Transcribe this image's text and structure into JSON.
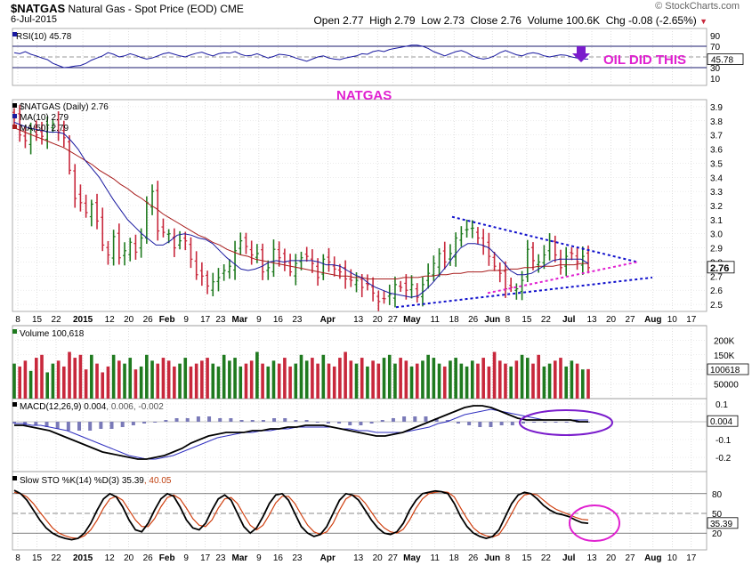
{
  "header": {
    "symbol": "$NATGAS",
    "name": "Natural Gas - Spot Price (EOD)",
    "exchange": "CME",
    "date": "6-Jul-2015",
    "brand": "© StockCharts.com",
    "quote": "Open 2.77  High 2.79  Low 2.73  Close 2.76  Volume 100.6K  Chg -0.08 (-2.65%)",
    "quote_arrow": "▼"
  },
  "annotations": {
    "oil": "OIL DID THIS",
    "natgas": "NATGAS"
  },
  "colors": {
    "up": "#1f7a1f",
    "down": "#c8283c",
    "ma10": "#1a1aa0",
    "ma50": "#a81c1c",
    "pink": "#e020d0",
    "purple": "#7a1ccc",
    "blue_trend": "#1010cc",
    "hist": "#7a7ab8"
  },
  "chart_data": [
    {
      "type": "line",
      "panel": "rsi",
      "legend": "RSI(10) 45.78",
      "last": "45.78",
      "yticks": [
        "90",
        "70",
        "50",
        "30",
        "10"
      ],
      "ylim": [
        0,
        100
      ],
      "values": [
        58,
        56,
        60,
        55,
        52,
        48,
        45,
        38,
        34,
        30,
        31,
        33,
        34,
        38,
        44,
        48,
        52,
        58,
        55,
        50,
        52,
        56,
        53,
        49,
        46,
        48,
        52,
        56,
        58,
        55,
        52,
        50,
        54,
        57,
        59,
        55,
        52,
        56,
        58,
        57,
        60,
        55,
        52,
        53,
        56,
        52,
        48,
        51,
        55,
        54,
        52,
        48,
        45,
        42,
        46,
        50,
        52,
        48,
        46,
        45,
        48,
        50,
        52,
        56,
        55,
        60,
        62,
        60,
        64,
        66,
        68,
        70,
        72,
        72,
        70,
        66,
        60,
        56,
        52,
        56,
        60,
        62,
        58,
        52,
        48,
        46,
        48,
        52,
        58,
        62,
        58,
        54,
        52,
        56,
        58,
        56,
        52,
        50,
        52,
        54,
        53,
        50,
        48,
        46,
        46
      ]
    },
    {
      "type": "ohlc",
      "panel": "price",
      "legend": [
        "$NATGAS (Daily) 2.76",
        "MA(10) 2.79",
        "MA(50) 2.79"
      ],
      "last": "2.76",
      "ylim": [
        2.45,
        3.95
      ],
      "yticks": [
        "3.9",
        "3.8",
        "3.7",
        "3.6",
        "3.5",
        "3.4",
        "3.3",
        "3.2",
        "3.1",
        "3.0",
        "2.9",
        "2.8",
        "2.7",
        "2.6",
        "2.5"
      ],
      "close": [
        3.82,
        3.7,
        3.66,
        3.74,
        3.7,
        3.69,
        3.77,
        3.78,
        3.72,
        3.68,
        3.45,
        3.25,
        3.22,
        3.15,
        3.21,
        3.09,
        2.92,
        2.85,
        2.98,
        2.83,
        2.88,
        2.94,
        2.87,
        2.97,
        3.22,
        3.3,
        3.02,
        3.01,
        3.0,
        2.9,
        2.95,
        2.95,
        2.82,
        2.71,
        2.7,
        2.63,
        2.66,
        2.69,
        2.74,
        2.77,
        2.88,
        2.95,
        2.91,
        2.85,
        2.86,
        2.73,
        2.76,
        2.89,
        2.83,
        2.8,
        2.73,
        2.79,
        2.83,
        2.84,
        2.79,
        2.69,
        2.82,
        2.8,
        2.75,
        2.73,
        2.68,
        2.67,
        2.67,
        2.62,
        2.64,
        2.58,
        2.52,
        2.54,
        2.57,
        2.64,
        2.62,
        2.6,
        2.64,
        2.55,
        2.64,
        2.72,
        2.79,
        2.86,
        2.8,
        2.86,
        2.97,
        3.0,
        3.03,
        3.04,
        2.97,
        2.91,
        2.84,
        2.77,
        2.72,
        2.61,
        2.62,
        2.61,
        2.67,
        2.89,
        2.81,
        2.8,
        2.85,
        2.95,
        2.85,
        2.76,
        2.84,
        2.86,
        2.8,
        2.84,
        2.76
      ],
      "ma10": [
        3.79,
        3.77,
        3.75,
        3.74,
        3.73,
        3.72,
        3.72,
        3.71,
        3.66,
        3.6,
        3.52,
        3.46,
        3.4,
        3.32,
        3.24,
        3.17,
        3.1,
        3.05,
        3.0,
        2.96,
        2.92,
        2.92,
        2.95,
        2.99,
        3.0,
        2.99,
        2.97,
        2.96,
        2.93,
        2.88,
        2.83,
        2.79,
        2.75,
        2.74,
        2.75,
        2.77,
        2.8,
        2.81,
        2.8,
        2.81,
        2.81,
        2.81,
        2.81,
        2.8,
        2.78,
        2.78,
        2.77,
        2.74,
        2.71,
        2.69,
        2.65,
        2.62,
        2.6,
        2.58,
        2.57,
        2.56,
        2.55,
        2.56,
        2.6,
        2.65,
        2.71,
        2.77,
        2.84,
        2.9,
        2.93,
        2.93,
        2.92,
        2.9,
        2.85,
        2.8,
        2.74,
        2.71,
        2.71,
        2.72,
        2.75,
        2.78,
        2.81,
        2.82,
        2.82,
        2.82,
        2.82,
        2.79
      ],
      "ma50": [
        3.75,
        3.73,
        3.71,
        3.69,
        3.67,
        3.65,
        3.63,
        3.61,
        3.58,
        3.55,
        3.52,
        3.49,
        3.45,
        3.42,
        3.39,
        3.35,
        3.32,
        3.28,
        3.25,
        3.21,
        3.18,
        3.14,
        3.11,
        3.08,
        3.05,
        3.02,
        2.99,
        2.97,
        2.94,
        2.92,
        2.89,
        2.87,
        2.85,
        2.84,
        2.82,
        2.81,
        2.8,
        2.79,
        2.78,
        2.77,
        2.76,
        2.75,
        2.74,
        2.73,
        2.72,
        2.71,
        2.7,
        2.7,
        2.69,
        2.69,
        2.68,
        2.68,
        2.68,
        2.68,
        2.68,
        2.69,
        2.69,
        2.69,
        2.7,
        2.7,
        2.71,
        2.71,
        2.72,
        2.72,
        2.73,
        2.73,
        2.73,
        2.74,
        2.74,
        2.74,
        2.75,
        2.75,
        2.76,
        2.76,
        2.77,
        2.77,
        2.77,
        2.78,
        2.78,
        2.78,
        2.79,
        2.79
      ]
    },
    {
      "type": "bar",
      "panel": "volume",
      "legend": "Volume 100,618",
      "last": "100618",
      "ylim": [
        0,
        250000
      ],
      "yticks": [
        "200K",
        "150K",
        "100K",
        "50000"
      ],
      "values": [
        120,
        110,
        130,
        95,
        140,
        150,
        90,
        120,
        130,
        110,
        160,
        140,
        150,
        100,
        150,
        120,
        90,
        110,
        150,
        130,
        120,
        140,
        100,
        110,
        150,
        130,
        120,
        140,
        130,
        110,
        120,
        140,
        110,
        120,
        130,
        140,
        120,
        110,
        150,
        130,
        140,
        110,
        120,
        130,
        160,
        120,
        110,
        130,
        120,
        140,
        110,
        120,
        150,
        130,
        140,
        120,
        150,
        120,
        110,
        140,
        160,
        130,
        120,
        140,
        110,
        130,
        120,
        140,
        150,
        120,
        140,
        130,
        110,
        120,
        130,
        150,
        140,
        120,
        110,
        130,
        140,
        120,
        110,
        130,
        120,
        140,
        110,
        160,
        130,
        120,
        110,
        130,
        150,
        140,
        120,
        150,
        110,
        120,
        130,
        140,
        110,
        130,
        120,
        100,
        101
      ]
    },
    {
      "type": "line",
      "panel": "macd",
      "legend": [
        "MACD(12,26,9)",
        "0.004",
        ", 0.006, -0.002"
      ],
      "last": "0.004",
      "ylim": [
        -0.28,
        0.13
      ],
      "yticks": [
        "0.1",
        "-0.1",
        "-0.2"
      ],
      "zero_label": "0.0",
      "macd": [
        -0.02,
        -0.02,
        -0.03,
        -0.04,
        -0.05,
        -0.07,
        -0.09,
        -0.11,
        -0.13,
        -0.15,
        -0.17,
        -0.18,
        -0.19,
        -0.2,
        -0.21,
        -0.21,
        -0.2,
        -0.19,
        -0.17,
        -0.15,
        -0.12,
        -0.1,
        -0.08,
        -0.07,
        -0.06,
        -0.06,
        -0.06,
        -0.05,
        -0.05,
        -0.04,
        -0.04,
        -0.03,
        -0.03,
        -0.02,
        -0.02,
        -0.02,
        -0.03,
        -0.04,
        -0.05,
        -0.06,
        -0.07,
        -0.08,
        -0.08,
        -0.07,
        -0.06,
        -0.04,
        -0.02,
        0.0,
        0.02,
        0.04,
        0.06,
        0.08,
        0.09,
        0.09,
        0.08,
        0.06,
        0.04,
        0.02,
        0.01,
        0.01,
        0.01,
        0.01,
        0.01,
        0.01,
        0.0,
        0.0
      ],
      "signal": [
        -0.01,
        -0.01,
        -0.02,
        -0.02,
        -0.03,
        -0.04,
        -0.05,
        -0.07,
        -0.09,
        -0.11,
        -0.13,
        -0.15,
        -0.17,
        -0.19,
        -0.2,
        -0.21,
        -0.21,
        -0.2,
        -0.19,
        -0.17,
        -0.15,
        -0.13,
        -0.11,
        -0.09,
        -0.08,
        -0.07,
        -0.06,
        -0.06,
        -0.05,
        -0.05,
        -0.04,
        -0.04,
        -0.03,
        -0.03,
        -0.03,
        -0.03,
        -0.03,
        -0.04,
        -0.04,
        -0.05,
        -0.05,
        -0.06,
        -0.06,
        -0.06,
        -0.06,
        -0.05,
        -0.04,
        -0.03,
        -0.01,
        0.0,
        0.02,
        0.04,
        0.05,
        0.06,
        0.07,
        0.06,
        0.05,
        0.04,
        0.03,
        0.02,
        0.01,
        0.01,
        0.01,
        0.01,
        0.01,
        0.01
      ],
      "hist": [
        -0.01,
        -0.02,
        -0.02,
        -0.03,
        -0.04,
        -0.05,
        -0.05,
        -0.05,
        -0.04,
        -0.04,
        -0.03,
        -0.02,
        -0.01,
        0.0,
        0.01,
        0.02,
        0.02,
        0.03,
        0.03,
        0.02,
        0.02,
        0.01,
        0.01,
        0.01,
        0.02,
        0.02,
        0.01,
        0.01,
        0.0,
        -0.01,
        -0.01,
        -0.02,
        -0.02,
        -0.01,
        0.01,
        0.02,
        0.03,
        0.03,
        0.03,
        0.02,
        0.01,
        -0.01,
        -0.02,
        -0.03,
        -0.03,
        -0.02,
        -0.02,
        -0.01,
        0.0,
        0.0,
        0.0,
        0.0,
        0.0,
        0.0
      ]
    },
    {
      "type": "line",
      "panel": "sto",
      "legend": [
        "Slow STO %K(14) %D(3)",
        "35.39",
        ", 40.05"
      ],
      "last": "35.39",
      "ylim": [
        0,
        100
      ],
      "yticks": [
        "80",
        "50",
        "20"
      ],
      "k": [
        85,
        80,
        70,
        55,
        40,
        28,
        20,
        15,
        12,
        10,
        12,
        20,
        35,
        55,
        72,
        80,
        75,
        60,
        40,
        25,
        22,
        35,
        55,
        72,
        80,
        76,
        60,
        40,
        28,
        25,
        35,
        55,
        72,
        78,
        70,
        50,
        30,
        20,
        28,
        45,
        65,
        78,
        80,
        70,
        50,
        30,
        20,
        15,
        18,
        30,
        50,
        70,
        80,
        78,
        70,
        55,
        40,
        28,
        20,
        18,
        22,
        35,
        55,
        70,
        80,
        82,
        84,
        83,
        80,
        65,
        45,
        30,
        20,
        15,
        12,
        15,
        25,
        45,
        65,
        78,
        82,
        80,
        72,
        62,
        55,
        50,
        48,
        45,
        40,
        36,
        35
      ],
      "d": [
        82,
        80,
        75,
        65,
        52,
        40,
        28,
        20,
        16,
        13,
        12,
        16,
        25,
        40,
        58,
        72,
        76,
        70,
        55,
        40,
        30,
        30,
        42,
        60,
        74,
        78,
        72,
        58,
        42,
        32,
        30,
        40,
        58,
        72,
        74,
        65,
        48,
        32,
        25,
        32,
        48,
        66,
        76,
        76,
        65,
        48,
        32,
        22,
        18,
        22,
        35,
        55,
        72,
        78,
        76,
        66,
        52,
        38,
        28,
        22,
        20,
        26,
        40,
        58,
        72,
        80,
        82,
        83,
        82,
        75,
        58,
        42,
        28,
        20,
        16,
        14,
        18,
        32,
        50,
        68,
        78,
        80,
        78,
        70,
        62,
        56,
        52,
        48,
        44,
        41,
        40
      ]
    }
  ],
  "axis": {
    "labels": [
      {
        "t": "8",
        "b": 0
      },
      {
        "t": "15",
        "b": 5
      },
      {
        "t": "22",
        "b": 10
      },
      {
        "t": "2015",
        "b": 17,
        "bold": true
      },
      {
        "t": "12",
        "b": 24
      },
      {
        "t": "20",
        "b": 29
      },
      {
        "t": "26",
        "b": 34
      },
      {
        "t": "Feb",
        "b": 39,
        "bold": true
      },
      {
        "t": "9",
        "b": 44
      },
      {
        "t": "17",
        "b": 49
      },
      {
        "t": "23",
        "b": 53
      },
      {
        "t": "Mar",
        "b": 58,
        "bold": true
      },
      {
        "t": "9",
        "b": 63
      },
      {
        "t": "16",
        "b": 68
      },
      {
        "t": "23",
        "b": 73
      },
      {
        "t": "Apr",
        "b": 81,
        "bold": true
      },
      {
        "t": "13",
        "b": 89
      },
      {
        "t": "20",
        "b": 94
      },
      {
        "t": "27",
        "b": 98
      },
      {
        "t": "May",
        "b": 103,
        "bold": true
      },
      {
        "t": "11",
        "b": 109
      },
      {
        "t": "18",
        "b": 114
      },
      {
        "t": "26",
        "b": 119
      },
      {
        "t": "Jun",
        "b": 124,
        "bold": true
      },
      {
        "t": "8",
        "b": 128
      },
      {
        "t": "15",
        "b": 133
      },
      {
        "t": "22",
        "b": 138
      },
      {
        "t": "Jul",
        "b": 144,
        "bold": true
      },
      {
        "t": "13",
        "b": 150
      },
      {
        "t": "20",
        "b": 155
      },
      {
        "t": "27",
        "b": 160
      },
      {
        "t": "Aug",
        "b": 166,
        "bold": true
      },
      {
        "t": "10",
        "b": 171
      },
      {
        "t": "17",
        "b": 176
      }
    ]
  }
}
